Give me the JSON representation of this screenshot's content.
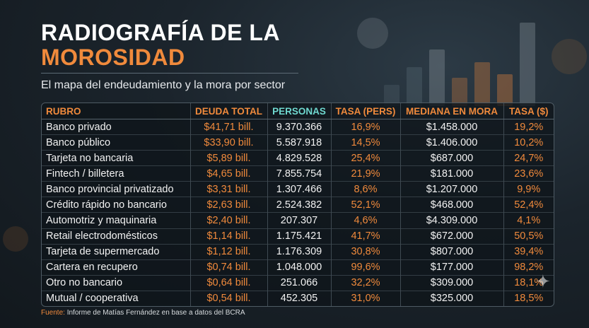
{
  "title": {
    "line1": "RADIOGRAFÍA DE LA",
    "line2": "MOROSIDAD"
  },
  "subtitle": "El mapa del endeudamiento y la mora por sector",
  "table": {
    "headers": {
      "rubro": "RUBRO",
      "deuda": "DEUDA TOTAL",
      "personas": "PERSONAS",
      "tasa_pers": "TASA (PERS)",
      "mediana": "MEDIANA EN MORA",
      "tasa_money": "TASA ($)"
    },
    "rows": [
      {
        "rubro": "Banco privado",
        "deuda": "$41,71 bill.",
        "personas": "9.370.366",
        "tasa_pers": "16,9%",
        "mediana": "$1.458.000",
        "tasa_money": "19,2%"
      },
      {
        "rubro": "Banco público",
        "deuda": "$33,90 bill.",
        "personas": "5.587.918",
        "tasa_pers": "14,5%",
        "mediana": "$1.406.000",
        "tasa_money": "10,2%"
      },
      {
        "rubro": "Tarjeta no bancaria",
        "deuda": "$5,89 bill.",
        "personas": "4.829.528",
        "tasa_pers": "25,4%",
        "mediana": "$687.000",
        "tasa_money": "24,7%"
      },
      {
        "rubro": "Fintech / billetera",
        "deuda": "$4,65 bill.",
        "personas": "7.855.754",
        "tasa_pers": "21,9%",
        "mediana": "$181.000",
        "tasa_money": "23,6%"
      },
      {
        "rubro": "Banco provincial privatizado",
        "deuda": "$3,31 bill.",
        "personas": "1.307.466",
        "tasa_pers": "8,6%",
        "mediana": "$1.207.000",
        "tasa_money": "9,9%"
      },
      {
        "rubro": "Crédito rápido no bancario",
        "deuda": "$2,63 bill.",
        "personas": "2.524.382",
        "tasa_pers": "52,1%",
        "mediana": "$468.000",
        "tasa_money": "52,4%"
      },
      {
        "rubro": "Automotriz y maquinaria",
        "deuda": "$2,40 bill.",
        "personas": "207.307",
        "tasa_pers": "4,6%",
        "mediana": "$4.309.000",
        "tasa_money": "4,1%"
      },
      {
        "rubro": "Retail electrodomésticos",
        "deuda": "$1,14 bill.",
        "personas": "1.175.421",
        "tasa_pers": "41,7%",
        "mediana": "$672.000",
        "tasa_money": "50,5%"
      },
      {
        "rubro": "Tarjeta de supermercado",
        "deuda": "$1,12 bill.",
        "personas": "1.176.309",
        "tasa_pers": "30,8%",
        "mediana": "$807.000",
        "tasa_money": "39,4%"
      },
      {
        "rubro": "Cartera en recupero",
        "deuda": "$0,74 bill.",
        "personas": "1.048.000",
        "tasa_pers": "99,6%",
        "mediana": "$177.000",
        "tasa_money": "98,2%"
      },
      {
        "rubro": "Otro no bancario",
        "deuda": "$0,64 bill.",
        "personas": "251.066",
        "tasa_pers": "32,2%",
        "mediana": "$309.000",
        "tasa_money": "18,1%"
      },
      {
        "rubro": "Mutual / cooperativa",
        "deuda": "$0,54 bill.",
        "personas": "452.305",
        "tasa_pers": "31,0%",
        "mediana": "$325.000",
        "tasa_money": "18,5%"
      }
    ]
  },
  "source": {
    "label": "Fuente:",
    "text": "Informe de Matías Fernández en base a datos del BCRA"
  },
  "colors": {
    "accent": "#f08a3c",
    "teal": "#6fd8cf",
    "text": "#f2f2f2",
    "background": "#1b242c"
  }
}
